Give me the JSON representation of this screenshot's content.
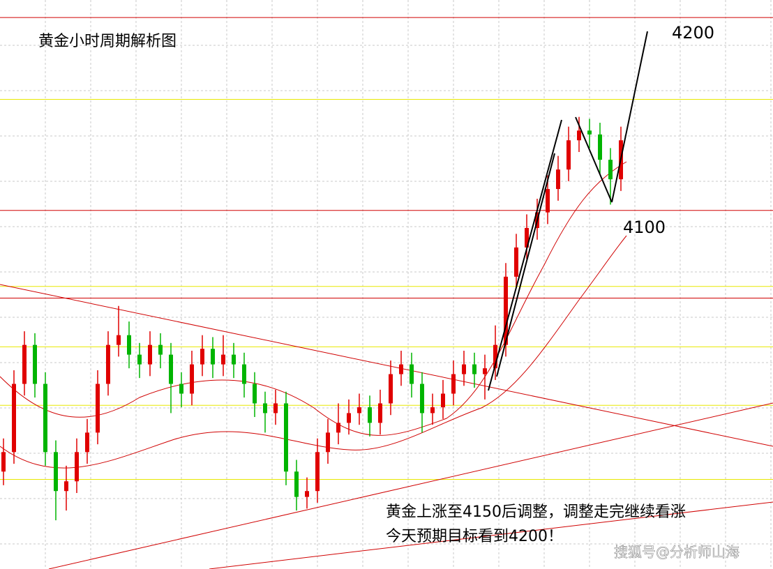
{
  "chart_data": {
    "type": "candlestick",
    "title": "黄金小时周期解析图",
    "annotations": [
      "4200",
      "4100",
      "黄金上涨至4150后调整，调整走完继续看涨",
      "今天预期目标看到4200！"
    ],
    "watermark": "搜狐号@分析师山海",
    "ylim": [
      3925,
      4217
    ],
    "up_color": "#e00000",
    "down_color": "#00b400",
    "levels": [
      {
        "value": 4208,
        "color": "#d00000"
      },
      {
        "value": 4109,
        "color": "#d00000"
      },
      {
        "value": 4064,
        "color": "#d00000"
      },
      {
        "value": 4166,
        "color": "#e8e800"
      },
      {
        "value": 4070,
        "color": "#e8e800"
      },
      {
        "value": 4039,
        "color": "#e8e800"
      },
      {
        "value": 4009,
        "color": "#e8e800"
      },
      {
        "value": 3971,
        "color": "#e8e800"
      }
    ],
    "open": [
      3975,
      3985,
      4020,
      4040,
      4020,
      3985,
      3965,
      3970,
      3985,
      3995,
      4020,
      4040,
      4045,
      4035,
      4030,
      4040,
      4035,
      4020,
      4015,
      4030,
      4038,
      4030,
      4035,
      4030,
      4020,
      4010,
      4005,
      4010,
      3975,
      3962,
      3965,
      3985,
      3995,
      4000,
      4005,
      4008,
      4000,
      4010,
      4025,
      4030,
      4020,
      4005,
      4008,
      4015,
      4025,
      4030,
      4025,
      4028,
      4040,
      4075,
      4090,
      4100,
      4108,
      4120,
      4130,
      4145,
      4150,
      4148,
      4135,
      4125
    ],
    "high": [
      3992,
      4027,
      4047,
      4046,
      4026,
      3991,
      3978,
      3992,
      4002,
      4027,
      4047,
      4060,
      4052,
      4041,
      4047,
      4046,
      4041,
      4026,
      4037,
      4045,
      4044,
      4045,
      4041,
      4036,
      4026,
      4016,
      4017,
      4016,
      3981,
      3972,
      3992,
      4002,
      4010,
      4012,
      4015,
      4014,
      4017,
      4032,
      4037,
      4036,
      4026,
      4015,
      4022,
      4032,
      4037,
      4036,
      4035,
      4050,
      4082,
      4097,
      4107,
      4115,
      4127,
      4137,
      4152,
      4157,
      4156,
      4154,
      4141,
      4152
    ],
    "low": [
      3968,
      3979,
      4014,
      4013,
      3978,
      3950,
      3955,
      3964,
      3979,
      3989,
      4014,
      4034,
      4028,
      4023,
      4024,
      4028,
      4005,
      4008,
      4009,
      4024,
      4023,
      4024,
      4023,
      4013,
      4003,
      3995,
      3999,
      3968,
      3955,
      3956,
      3959,
      3979,
      3989,
      3994,
      3999,
      3993,
      3994,
      4004,
      4019,
      4013,
      3995,
      3999,
      4002,
      4009,
      4019,
      4018,
      4012,
      4022,
      4034,
      4069,
      4084,
      4094,
      4102,
      4114,
      4124,
      4139,
      4141,
      4128,
      4112,
      4119
    ],
    "close": [
      3985,
      4020,
      4040,
      4020,
      3985,
      3965,
      3970,
      3985,
      3995,
      4020,
      4040,
      4045,
      4035,
      4030,
      4040,
      4035,
      4020,
      4015,
      4030,
      4038,
      4030,
      4035,
      4030,
      4020,
      4010,
      4005,
      4010,
      3975,
      3962,
      3965,
      3985,
      3995,
      4000,
      4005,
      4008,
      4000,
      4010,
      4025,
      4030,
      4020,
      4005,
      4008,
      4015,
      4025,
      4030,
      4025,
      4028,
      4040,
      4075,
      4090,
      4100,
      4108,
      4120,
      4130,
      4145,
      4150,
      4148,
      4135,
      4125,
      4145
    ]
  }
}
